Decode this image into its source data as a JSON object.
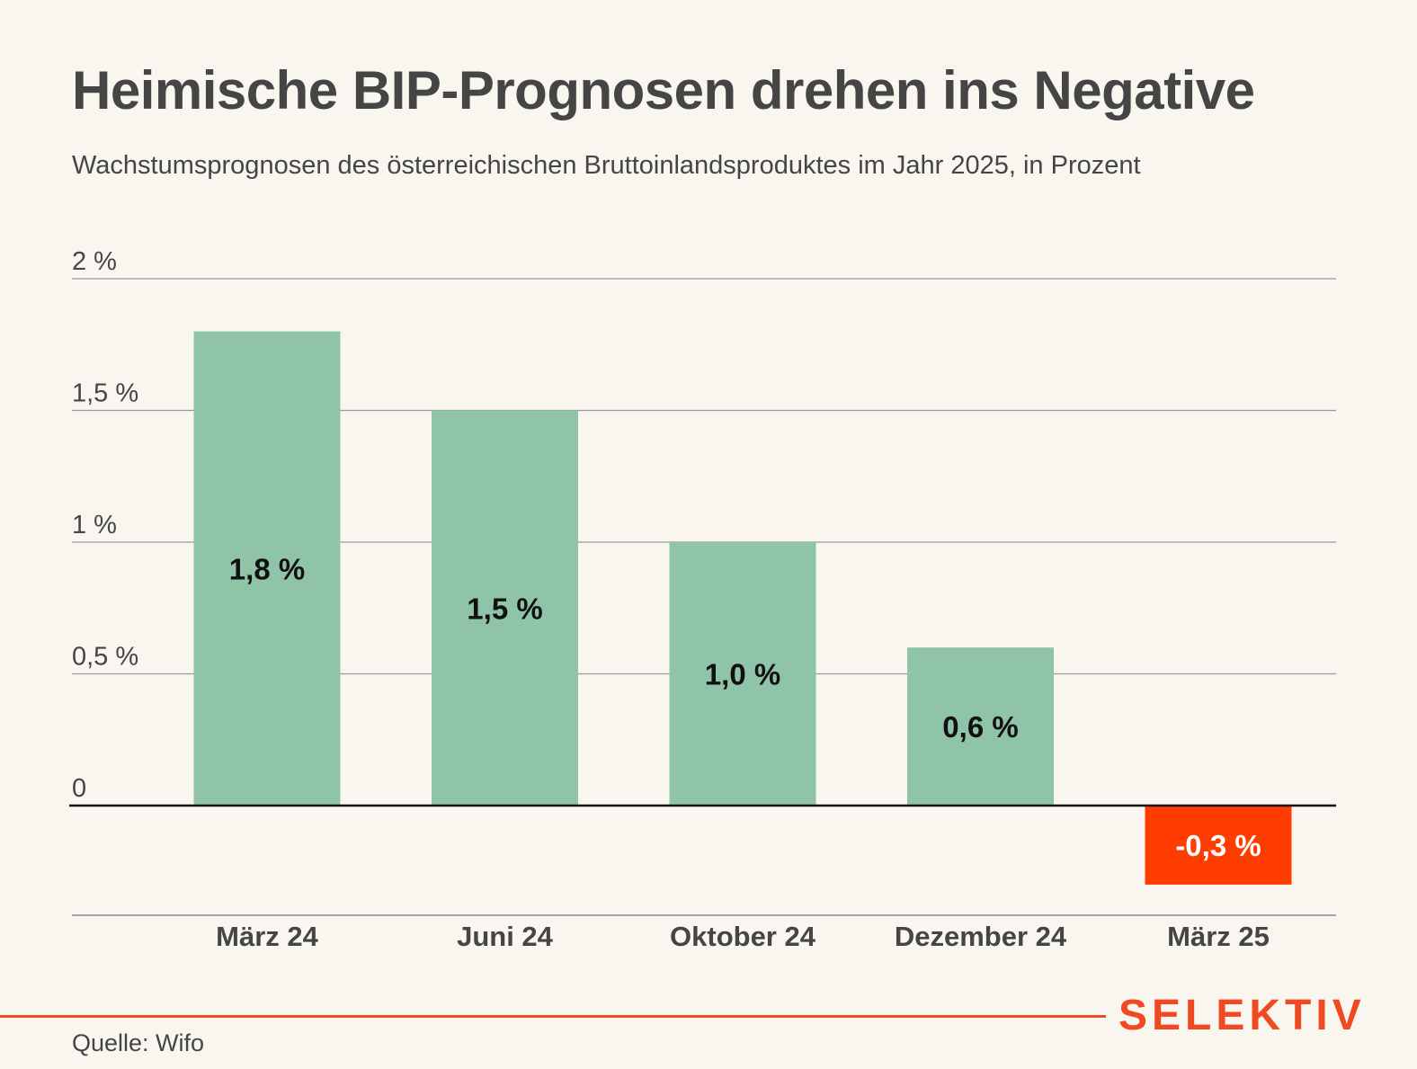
{
  "header": {
    "title": "Heimische BIP-Prognosen drehen ins Negative",
    "subtitle": "Wachstumsprognosen des österreichischen Bruttoinlandsproduktes im Jahr 2025, in Prozent"
  },
  "footer": {
    "source": "Quelle: Wifo",
    "brand": "SELEKTIV"
  },
  "colors": {
    "background": "#f8f6ef",
    "positive_bar": "#8fc4a9",
    "negative_bar": "#ff3d00",
    "brand": "#f04a23",
    "text": "#454545"
  },
  "chart_data": {
    "type": "bar",
    "categories": [
      "März 24",
      "Juni 24",
      "Oktober 24",
      "Dezember 24",
      "März 25"
    ],
    "values": [
      1.8,
      1.5,
      1.0,
      0.6,
      -0.3
    ],
    "value_labels": [
      "1,8 %",
      "1,5 %",
      "1,0 %",
      "0,6 %",
      "-0,3 %"
    ],
    "yticks": [
      0,
      0.5,
      1,
      1.5,
      2
    ],
    "ytick_labels": [
      "0",
      "0,5 %",
      "1 %",
      "1,5 %",
      "2 %"
    ],
    "ylim": [
      -0.41,
      2
    ],
    "grid": true,
    "legend": "none"
  }
}
